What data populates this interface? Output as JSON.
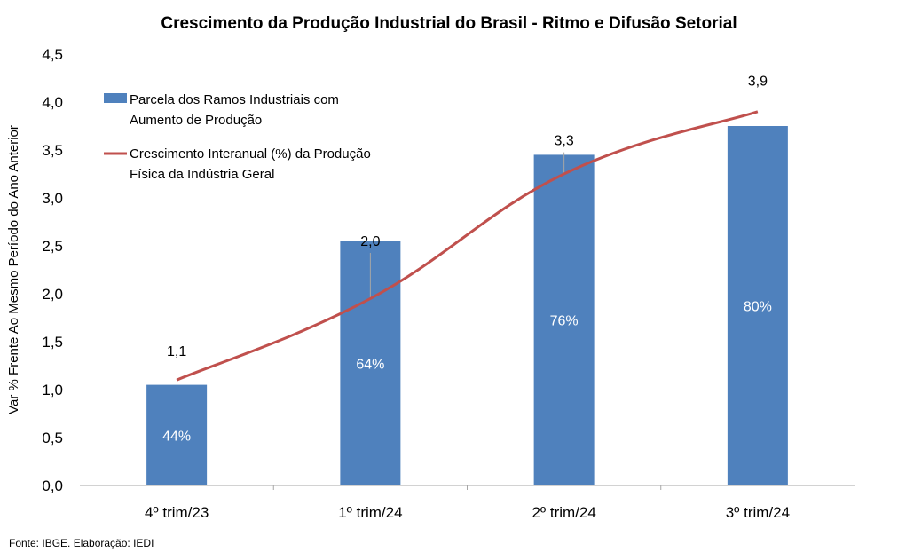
{
  "chart_data": {
    "type": "bar",
    "title": "Crescimento da Produção Industrial do Brasil - Ritmo e Difusão Setorial",
    "xlabel": "",
    "ylabel": "Var % Frente Ao Mesmo Período do Ano Anterior",
    "ylim": [
      0,
      4.5
    ],
    "yticks": [
      "0,0",
      "0,5",
      "1,0",
      "1,5",
      "2,0",
      "2,5",
      "3,0",
      "3,5",
      "4,0",
      "4,5"
    ],
    "categories": [
      "4º trim/23",
      "1º trim/24",
      "2º trim/24",
      "3º trim/24"
    ],
    "grid": false,
    "legend_position": "top-left",
    "series": [
      {
        "name": "Parcela dos Ramos Industriais com Aumento de Produção",
        "kind": "bar",
        "color": "#4F81BD",
        "values": [
          1.05,
          2.55,
          3.45,
          3.75
        ],
        "data_labels": [
          "44%",
          "64%",
          "76%",
          "80%"
        ]
      },
      {
        "name": "Crescimento Interanual (%) da Produção Física da Indústria Geral",
        "kind": "line",
        "color": "#C0504D",
        "values": [
          1.1,
          1.95,
          3.25,
          3.9
        ],
        "data_labels": [
          "1,1",
          "2,0",
          "3,3",
          "3,9"
        ]
      }
    ],
    "legend_lines": [
      [
        "Parcela dos Ramos Industriais com",
        "Aumento de Produção"
      ],
      [
        "Crescimento Interanual (%) da Produção",
        "Física da Indústria Geral"
      ]
    ],
    "source_note": "Fonte: IBGE. Elaboração: IEDI"
  }
}
